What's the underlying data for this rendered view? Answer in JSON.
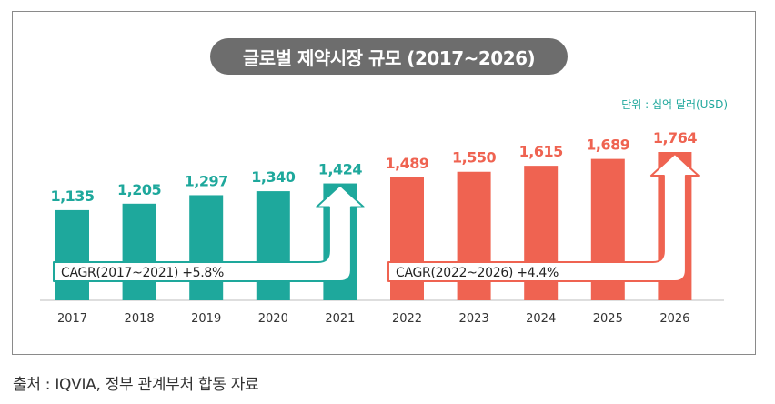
{
  "source": "출처 : IQVIA, 정부 관계부처 합동 자료",
  "chart_data": {
    "type": "bar",
    "title": "글로벌 제약시장 규모 (2017~2026)",
    "unit_label": "단위 : 십억 달러(USD)",
    "categories": [
      "2017",
      "2018",
      "2019",
      "2020",
      "2021",
      "2022",
      "2023",
      "2024",
      "2025",
      "2026"
    ],
    "values": [
      1135,
      1205,
      1297,
      1340,
      1424,
      1489,
      1550,
      1615,
      1689,
      1764
    ],
    "value_labels": [
      "1,135",
      "1,205",
      "1,297",
      "1,340",
      "1,424",
      "1,489",
      "1,550",
      "1,615",
      "1,689",
      "1,764"
    ],
    "annotations": [
      {
        "text": "CAGR(2017~2021) +5.8%",
        "from": "2017",
        "to": "2021"
      },
      {
        "text": "CAGR(2022~2026) +4.4%",
        "from": "2022",
        "to": "2026"
      }
    ],
    "colors": {
      "actual": "#1ea89c",
      "forecast": "#ef6351",
      "annotation_box": "#ffffff"
    },
    "grid": false,
    "legend": "none"
  }
}
